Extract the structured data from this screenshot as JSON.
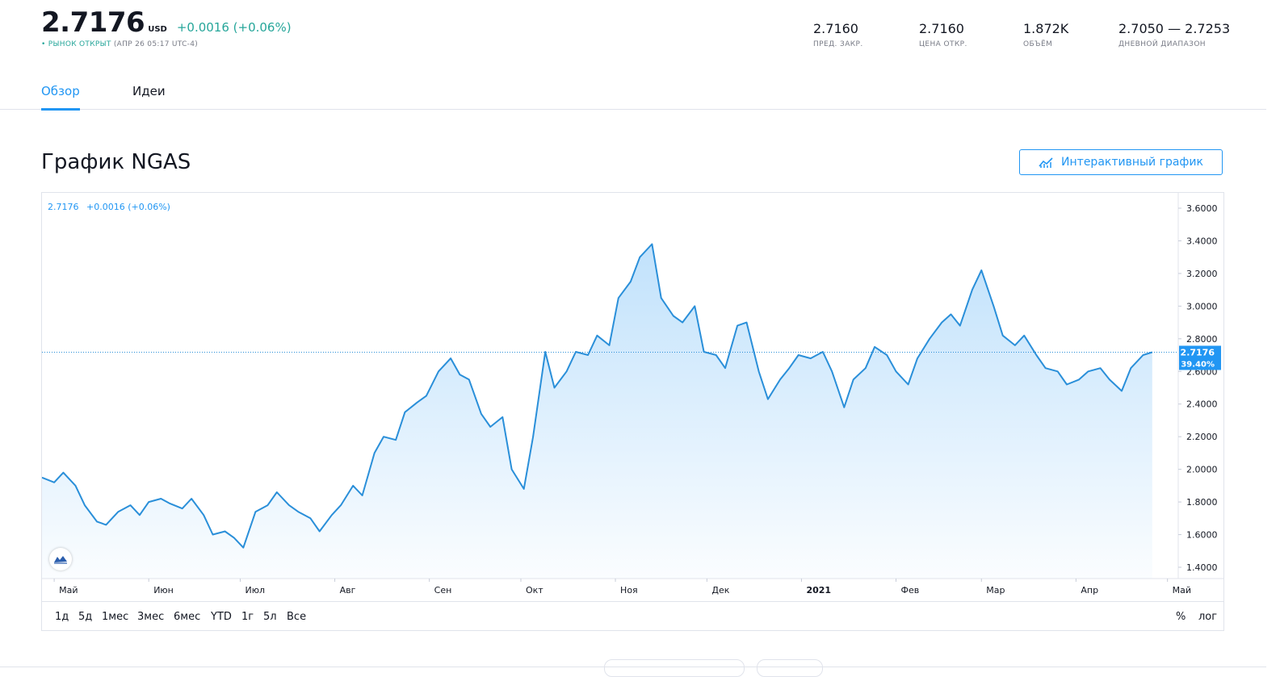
{
  "header": {
    "price": "2.7176",
    "currency": "USD",
    "change": "+0.0016 (+0.06%)",
    "status_dot": "•",
    "status_label": "РЫНОК ОТКРЫТ",
    "status_time": "(АПР 26 05:17 UTC-4)",
    "stats": [
      {
        "value": "2.7160",
        "label": "ПРЕД. ЗАКР."
      },
      {
        "value": "2.7160",
        "label": "ЦЕНА ОТКР."
      },
      {
        "value": "1.872K",
        "label": "ОБЪЁМ"
      },
      {
        "value": "2.7050 — 2.7253",
        "label": "ДНЕВНОЙ ДИАПАЗОН"
      }
    ]
  },
  "tabs": [
    {
      "label": "Обзор",
      "active": true
    },
    {
      "label": "Идеи",
      "active": false
    }
  ],
  "section": {
    "title": "График NGAS",
    "interactive_button": "Интерактивный график"
  },
  "chart_legend": {
    "price": "2.7176",
    "change": "+0.0016 (+0.06%)"
  },
  "range_buttons": [
    "1д",
    "5д",
    "1мес",
    "3мес",
    "6мес",
    "YTD",
    "1г",
    "5л",
    "Все"
  ],
  "right_buttons": {
    "percent": "%",
    "log": "лог"
  },
  "colors": {
    "accent": "#2196f3",
    "positive": "#26a69a",
    "line": "#2a8fd9"
  },
  "chart_data": {
    "type": "area",
    "ylim": [
      1.3,
      3.7
    ],
    "yticks": [
      "1.4000",
      "1.6000",
      "1.8000",
      "2.0000",
      "2.2000",
      "2.4000",
      "2.6000",
      "2.8000",
      "3.0000",
      "3.2000",
      "3.4000",
      "3.6000"
    ],
    "xticks": [
      "Май",
      "Июн",
      "Июл",
      "Авг",
      "Сен",
      "Окт",
      "Ноя",
      "Дек",
      "2021",
      "Фев",
      "Мар",
      "Апр",
      "Май"
    ],
    "x_start": "2020-04-27",
    "x_end": "2021-05-04",
    "last_value": 2.7176,
    "last_label": "2.7176",
    "last_pct_label": "39.40%",
    "series": [
      {
        "dates": [
          "2020-04-27",
          "2020-05-01",
          "2020-05-04",
          "2020-05-08",
          "2020-05-11",
          "2020-05-15",
          "2020-05-18",
          "2020-05-22",
          "2020-05-26",
          "2020-05-29",
          "2020-06-01",
          "2020-06-05",
          "2020-06-08",
          "2020-06-12",
          "2020-06-15",
          "2020-06-19",
          "2020-06-22",
          "2020-06-26",
          "2020-06-29",
          "2020-07-02",
          "2020-07-06",
          "2020-07-10",
          "2020-07-13",
          "2020-07-17",
          "2020-07-20",
          "2020-07-24",
          "2020-07-27",
          "2020-07-31",
          "2020-08-03",
          "2020-08-07",
          "2020-08-10",
          "2020-08-14",
          "2020-08-17",
          "2020-08-21",
          "2020-08-24",
          "2020-08-28",
          "2020-08-31",
          "2020-09-04",
          "2020-09-08",
          "2020-09-11",
          "2020-09-14",
          "2020-09-18",
          "2020-09-21",
          "2020-09-25",
          "2020-09-28",
          "2020-10-02",
          "2020-10-05",
          "2020-10-09",
          "2020-10-12",
          "2020-10-16",
          "2020-10-19",
          "2020-10-23",
          "2020-10-26",
          "2020-10-30",
          "2020-11-02",
          "2020-11-06",
          "2020-11-09",
          "2020-11-13",
          "2020-11-16",
          "2020-11-20",
          "2020-11-23",
          "2020-11-27",
          "2020-11-30",
          "2020-12-04",
          "2020-12-07",
          "2020-12-11",
          "2020-12-14",
          "2020-12-18",
          "2020-12-21",
          "2020-12-25",
          "2020-12-28",
          "2020-12-31",
          "2021-01-04",
          "2021-01-08",
          "2021-01-11",
          "2021-01-15",
          "2021-01-18",
          "2021-01-22",
          "2021-01-25",
          "2021-01-29",
          "2021-02-01",
          "2021-02-05",
          "2021-02-08",
          "2021-02-12",
          "2021-02-16",
          "2021-02-19",
          "2021-02-22",
          "2021-02-26",
          "2021-03-01",
          "2021-03-05",
          "2021-03-08",
          "2021-03-12",
          "2021-03-15",
          "2021-03-19",
          "2021-03-22",
          "2021-03-26",
          "2021-03-29",
          "2021-04-02",
          "2021-04-05",
          "2021-04-09",
          "2021-04-12",
          "2021-04-16",
          "2021-04-19",
          "2021-04-23",
          "2021-04-26"
        ],
        "values": [
          1.95,
          1.92,
          1.98,
          1.9,
          1.78,
          1.68,
          1.66,
          1.74,
          1.78,
          1.72,
          1.8,
          1.82,
          1.79,
          1.76,
          1.82,
          1.72,
          1.6,
          1.62,
          1.58,
          1.52,
          1.74,
          1.78,
          1.86,
          1.78,
          1.74,
          1.7,
          1.62,
          1.72,
          1.78,
          1.9,
          1.84,
          2.1,
          2.2,
          2.18,
          2.35,
          2.41,
          2.45,
          2.6,
          2.68,
          2.58,
          2.55,
          2.34,
          2.26,
          2.32,
          2.0,
          1.88,
          2.2,
          2.72,
          2.5,
          2.6,
          2.72,
          2.7,
          2.82,
          2.76,
          3.05,
          3.15,
          3.3,
          3.38,
          3.05,
          2.94,
          2.9,
          3.0,
          2.72,
          2.7,
          2.62,
          2.88,
          2.9,
          2.6,
          2.43,
          2.55,
          2.62,
          2.7,
          2.68,
          2.72,
          2.6,
          2.38,
          2.55,
          2.62,
          2.75,
          2.7,
          2.6,
          2.52,
          2.68,
          2.8,
          2.9,
          2.95,
          2.88,
          3.1,
          3.22,
          3.0,
          2.82,
          2.76,
          2.82,
          2.7,
          2.62,
          2.6,
          2.52,
          2.55,
          2.6,
          2.62,
          2.55,
          2.48,
          2.62,
          2.7,
          2.7176
        ]
      }
    ]
  }
}
